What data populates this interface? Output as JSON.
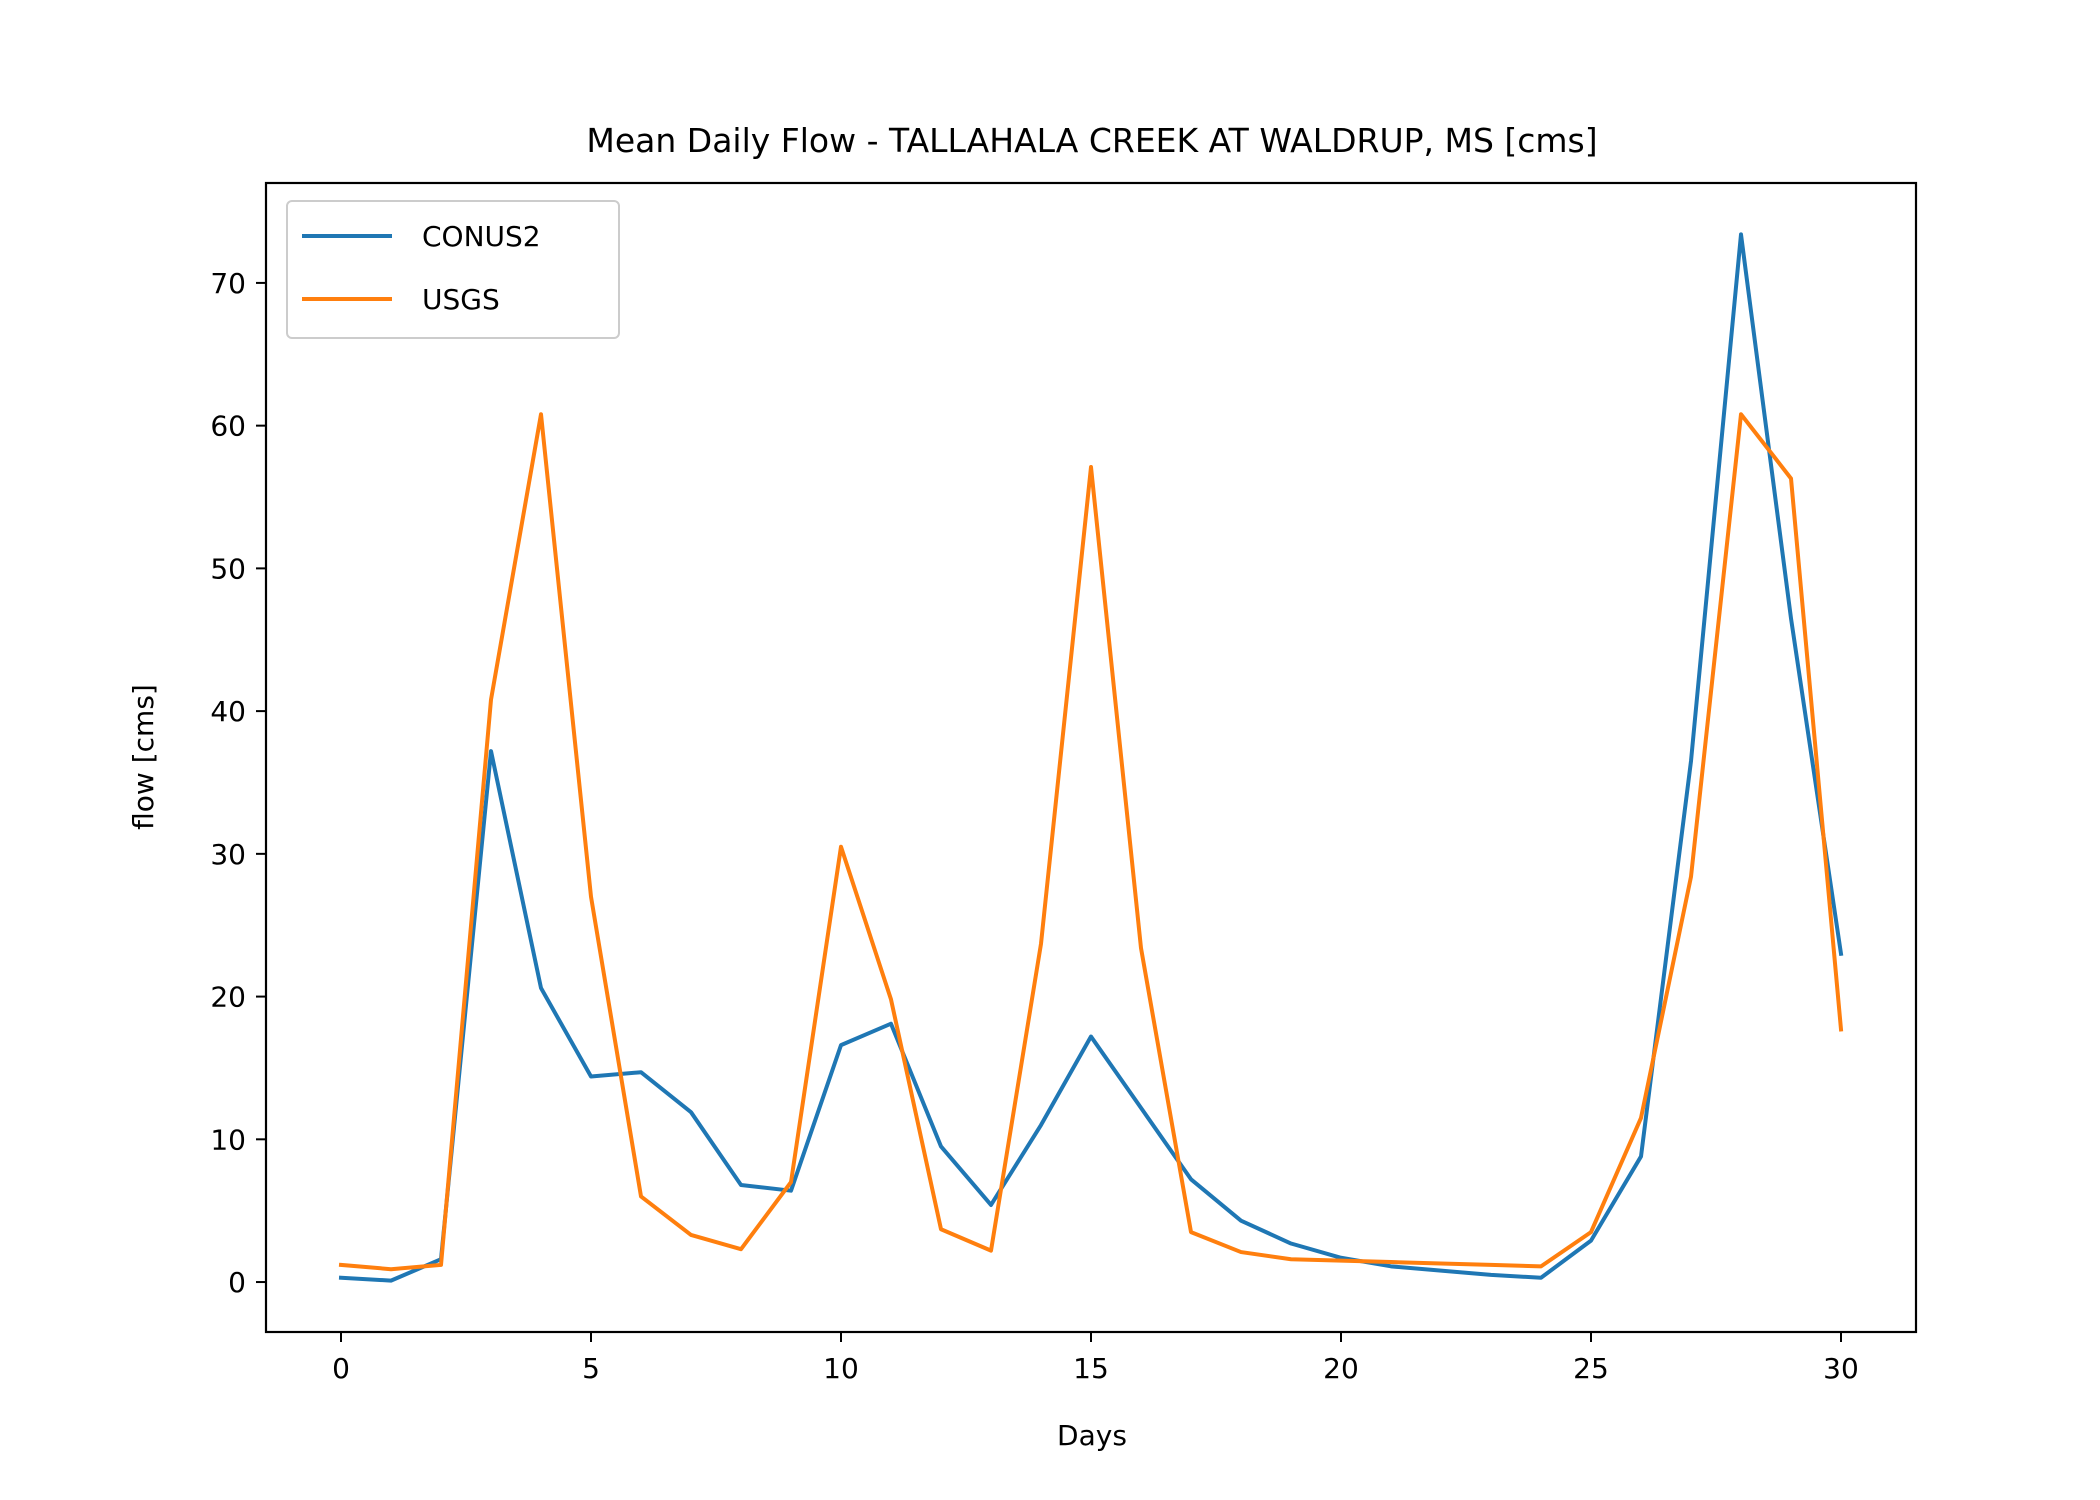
{
  "chart_data": {
    "type": "line",
    "title": "Mean Daily Flow - TALLAHALA CREEK AT WALDRUP, MS [cms]",
    "xlabel": "Days",
    "ylabel": "flow [cms]",
    "xlim": [
      -1.5,
      31.5
    ],
    "ylim": [
      -3.5,
      77
    ],
    "xticks": [
      0,
      5,
      10,
      15,
      20,
      25,
      30
    ],
    "yticks": [
      0,
      10,
      20,
      30,
      40,
      50,
      60,
      70
    ],
    "grid": false,
    "legend_position": "top-left",
    "x": [
      0,
      1,
      2,
      3,
      4,
      5,
      6,
      7,
      8,
      9,
      10,
      11,
      12,
      13,
      14,
      15,
      16,
      17,
      18,
      19,
      20,
      21,
      22,
      23,
      24,
      25,
      26,
      27,
      28,
      29,
      30
    ],
    "series": [
      {
        "name": "CONUS2",
        "color": "#1f77b4",
        "values": [
          0.3,
          0.1,
          1.6,
          37.2,
          20.6,
          14.4,
          14.7,
          11.9,
          6.8,
          6.4,
          16.6,
          18.1,
          9.5,
          5.4,
          11.0,
          17.2,
          12.2,
          7.2,
          4.3,
          2.7,
          1.7,
          1.1,
          0.8,
          0.5,
          0.3,
          2.9,
          8.8,
          36.5,
          73.4,
          46.5,
          23.0
        ]
      },
      {
        "name": "USGS",
        "color": "#ff7f0e",
        "values": [
          1.2,
          0.9,
          1.2,
          40.8,
          60.8,
          27.0,
          6.0,
          3.3,
          2.3,
          7.0,
          30.5,
          19.8,
          3.7,
          2.2,
          23.7,
          57.1,
          23.4,
          3.5,
          2.1,
          1.6,
          1.5,
          1.4,
          1.3,
          1.2,
          1.1,
          3.5,
          11.5,
          28.4,
          60.8,
          56.3,
          17.7
        ]
      }
    ]
  }
}
